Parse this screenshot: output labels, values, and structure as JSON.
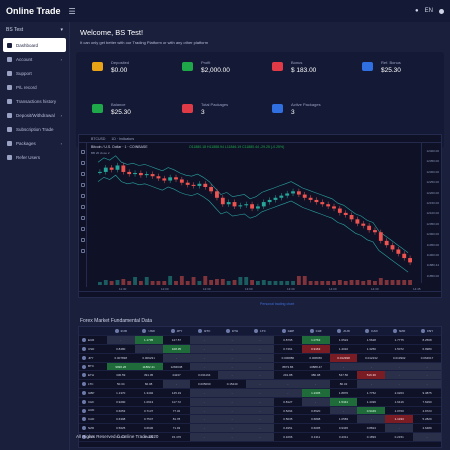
{
  "topbar": {
    "brand": "Online Trade",
    "lang": "EN"
  },
  "sidebar": {
    "user": "BS Test",
    "items": [
      {
        "label": "Dashboard",
        "icon": "home-icon",
        "active": true
      },
      {
        "label": "Account",
        "icon": "user-icon",
        "caret": true
      },
      {
        "label": "Support",
        "icon": "support-icon"
      },
      {
        "label": "P/L record",
        "icon": "chart-icon"
      },
      {
        "label": "Transactions history",
        "icon": "history-icon"
      },
      {
        "label": "Deposit/Withdrawal",
        "icon": "wallet-icon",
        "caret": true
      },
      {
        "label": "Subscription Trade",
        "icon": "subscription-icon"
      },
      {
        "label": "Packages",
        "icon": "package-icon",
        "caret": true
      },
      {
        "label": "Refer Users",
        "icon": "refer-icon"
      }
    ]
  },
  "welcome": {
    "title": "Welcome, BS Test!",
    "subtitle": "It can only get better with our Trading Platform or with any other platform"
  },
  "stats": [
    {
      "label": "Deposited",
      "value": "$0.00",
      "color": "#e8a317",
      "icon": "download-icon",
      "col": 0,
      "row": 0
    },
    {
      "label": "Profit",
      "value": "$2,000.00",
      "color": "#1fa84a",
      "icon": "money-icon",
      "col": 1,
      "row": 0
    },
    {
      "label": "Bonus",
      "value": "$ 183.00",
      "color": "#e03a46",
      "icon": "gift-icon",
      "col": 2,
      "row": 0
    },
    {
      "label": "Ref. Bonus",
      "value": "$25.30",
      "color": "#2f6fe0",
      "icon": "retweet-icon",
      "col": 3,
      "row": 0
    },
    {
      "label": "Balance",
      "value": "$25.30",
      "color": "#1fa84a",
      "icon": "balance-icon",
      "col": 0,
      "row": 1
    },
    {
      "label": "Total Packages",
      "value": "3",
      "color": "#e03a46",
      "icon": "mail-icon",
      "col": 1,
      "row": 1
    },
    {
      "label": "Active Packages",
      "value": "3",
      "color": "#2f6fe0",
      "icon": "briefcase-icon",
      "col": 2,
      "row": 1
    }
  ],
  "chart_widget": {
    "symbol": "BTCUSD",
    "toolbar": "1D  ·  Indicators",
    "title": "Bitcoin / U.S. Dollar · 1 · COINBASE",
    "ohlc": "O11880.18  H11888.94  L11846.19  C11880.44  -29.25 (-0.25%)",
    "study": "BB 20 close 2",
    "powered": "Personal trading chart",
    "yticks": [
      "12400.00",
      "12350.00",
      "12300.00",
      "12250.00",
      "12200.00",
      "12150.00",
      "12100.00",
      "12050.00",
      "12000.00",
      "11950.00",
      "11900.00",
      "11880.44",
      "11850.00"
    ],
    "xticks": [
      "11:30",
      "12:00",
      "12:30",
      "13:00",
      "13:30",
      "14:00",
      "14:30",
      "14:45"
    ],
    "price_series": [
      12300,
      12320,
      12310,
      12330,
      12300,
      12290,
      12295,
      12285,
      12290,
      12280,
      12270,
      12260,
      12275,
      12265,
      12250,
      12240,
      12235,
      12245,
      12230,
      12210,
      12180,
      12150,
      12160,
      12140,
      12145,
      12150,
      12130,
      12140,
      12160,
      12170,
      12180,
      12190,
      12200,
      12210,
      12195,
      12180,
      12170,
      12160,
      12150,
      12140,
      12130,
      12110,
      12100,
      12080,
      12060,
      12050,
      12030,
      12020,
      11980,
      11960,
      11940,
      11920,
      11900,
      11880
    ]
  },
  "forex": {
    "title": "Forex Market Fundamental Data",
    "headers": [
      "",
      "EUR",
      "USD",
      "JPY",
      "BTC",
      "ETH",
      "LTC",
      "GBP",
      "CHF",
      "AUD",
      "CAD",
      "NZD",
      "CNY"
    ],
    "rows": [
      [
        "EUR",
        "-",
        "1.1795",
        "127.57",
        "-",
        "-",
        "-",
        "0.8795",
        "1.0763",
        "1.6524",
        "1.5628",
        "1.7775",
        "8.2568"
      ],
      [
        "USD",
        "0.8480",
        "-",
        "108.35",
        "-",
        "-",
        "-",
        "0.7461",
        "0.9163",
        "1.4010",
        "1.3250",
        "1.5072",
        "6.9980"
      ],
      [
        "JPY",
        "0.007838",
        "0.009231",
        "-",
        "-",
        "-",
        "-",
        "0.006886",
        "0.008456",
        "0.012938",
        "0.012232",
        "0.013902",
        "0.064617"
      ],
      [
        "BTC",
        "9996.26",
        "11882.41",
        "1284638",
        "-",
        "-",
        "-",
        "8873.86",
        "10888.47",
        "-",
        "-",
        "-",
        "-"
      ],
      [
        "ETH",
        "330.59",
        "391.05",
        "44237",
        "0.031164",
        "-",
        "-",
        "291.88",
        "380.08",
        "547.56",
        "516.36",
        "-",
        "-"
      ],
      [
        "LTC",
        "50.34",
        "60.08",
        "-",
        "0.005060",
        "0.15440",
        "-",
        "-",
        "-",
        "80.32",
        "-",
        "-",
        "-"
      ],
      [
        "GBP",
        "1.1370",
        "1.3402",
        "145.19",
        "-",
        "-",
        "-",
        "-",
        "1.2305",
        "1.8876",
        "1.7752",
        "2.0203",
        "9.3875"
      ],
      [
        "CHF",
        "0.9290",
        "1.0913",
        "117.72",
        "-",
        "-",
        "-",
        "0.8127",
        "-",
        "1.5341",
        "1.4496",
        "1.6416",
        "7.6290"
      ],
      [
        "AUD",
        "0.6053",
        "0.7137",
        "77.32",
        "-",
        "-",
        "-",
        "0.5294",
        "0.6520",
        "-",
        "0.9449",
        "1.0700",
        "4.9723"
      ],
      [
        "CAD",
        "0.6398",
        "0.7547",
        "81.78",
        "-",
        "-",
        "-",
        "0.5635",
        "0.6898",
        "1.0583",
        "-",
        "1.1333",
        "5.2829"
      ],
      [
        "NZD",
        "0.5625",
        "0.6636",
        "71.93",
        "-",
        "-",
        "-",
        "0.4951",
        "0.6095",
        "0.9345",
        "0.8824",
        "-",
        "4.6489"
      ],
      [
        "CNY",
        "0.1211",
        "0.1429",
        "15.476",
        "-",
        "-",
        "-",
        "0.1066",
        "0.1311",
        "0.2011",
        "0.1893",
        "0.2151",
        "-"
      ]
    ],
    "highlights": {
      "pos": [
        [
          0,
          1
        ],
        [
          0,
          2
        ],
        [
          1,
          3
        ],
        [
          3,
          1
        ],
        [
          3,
          2
        ],
        [
          6,
          7
        ],
        [
          6,
          8
        ],
        [
          7,
          9
        ],
        [
          8,
          10
        ],
        [
          10,
          11
        ],
        [
          0,
          8
        ]
      ],
      "neg": [
        [
          1,
          8
        ],
        [
          2,
          9
        ],
        [
          4,
          10
        ],
        [
          9,
          11
        ]
      ]
    }
  },
  "footer": "All Rights Reserved © Online Trade 2020"
}
